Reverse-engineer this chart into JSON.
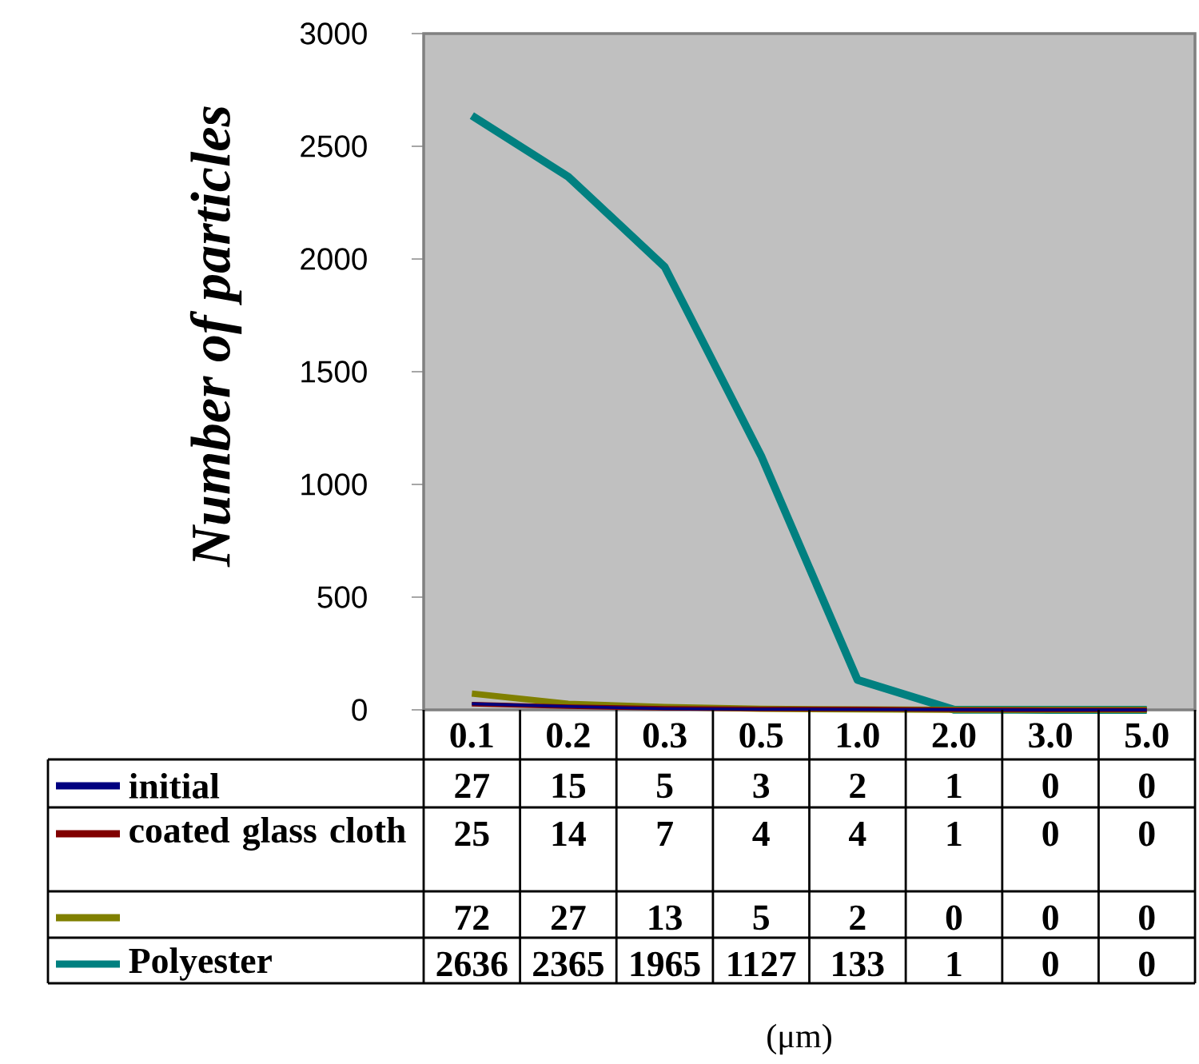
{
  "chart_data": {
    "type": "line",
    "ylabel": "Number of particles",
    "annotations": [
      "(μm)"
    ],
    "categories": [
      "0.1",
      "0.2",
      "0.3",
      "0.5",
      "1.0",
      "2.0",
      "3.0",
      "5.0"
    ],
    "ylim": [
      0,
      3000
    ],
    "yticks": [
      0,
      500,
      1000,
      1500,
      2000,
      2500,
      3000
    ],
    "legend": "bottom",
    "data_labels": true,
    "line_style": "solid",
    "series": [
      {
        "name": "initial",
        "color": "#000080",
        "values": [
          27,
          15,
          5,
          3,
          2,
          1,
          0,
          0
        ]
      },
      {
        "name": "coated glass cloth",
        "color": "#800000",
        "values": [
          25,
          14,
          7,
          4,
          4,
          1,
          0,
          0
        ]
      },
      {
        "color": "#808000",
        "values": [
          72,
          27,
          13,
          5,
          2,
          0,
          0,
          0
        ]
      },
      {
        "name": "Polyester",
        "color": "#008080",
        "values": [
          2636,
          2365,
          1965,
          1127,
          133,
          1,
          0,
          0
        ]
      }
    ]
  }
}
